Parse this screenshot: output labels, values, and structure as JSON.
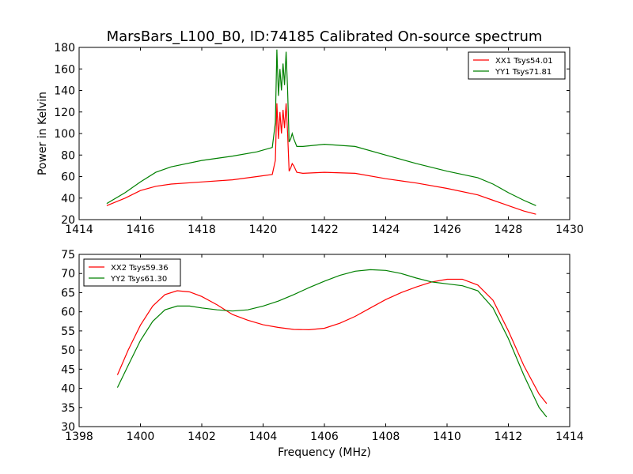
{
  "figure": {
    "title": "MarsBars_L100_B0, ID:74185 Calibrated On-source spectrum",
    "xlabel": "Frequency (MHz)"
  },
  "chart_data": [
    {
      "type": "line",
      "ylabel": "Power in Kelvin",
      "xlim": [
        1414,
        1430
      ],
      "ylim": [
        20,
        180
      ],
      "xticks": [
        "1414",
        "1416",
        "1418",
        "1420",
        "1422",
        "1424",
        "1426",
        "1428",
        "1430"
      ],
      "yticks": [
        "20",
        "40",
        "60",
        "80",
        "100",
        "120",
        "140",
        "160",
        "180"
      ],
      "legend": "top-right",
      "grid": false,
      "series": [
        {
          "name": "XX1 Tsys54.01",
          "color": "#ff0000",
          "x": [
            1414.9,
            1415.5,
            1416.0,
            1416.5,
            1417.0,
            1418.0,
            1419.0,
            1419.8,
            1420.3,
            1420.4,
            1420.45,
            1420.5,
            1420.55,
            1420.6,
            1420.65,
            1420.7,
            1420.75,
            1420.8,
            1420.85,
            1420.9,
            1420.95,
            1421.0,
            1421.1,
            1421.3,
            1422.0,
            1423.0,
            1424.0,
            1425.0,
            1426.0,
            1427.0,
            1427.5,
            1428.0,
            1428.5,
            1428.9
          ],
          "y": [
            33,
            40,
            47,
            51,
            53,
            55,
            57,
            60,
            62,
            75,
            128,
            95,
            120,
            100,
            122,
            105,
            128,
            100,
            65,
            68,
            72,
            70,
            64,
            63,
            64,
            63,
            58,
            54,
            49,
            43,
            38,
            33,
            28,
            25
          ]
        },
        {
          "name": "YY1 Tsys71.81",
          "color": "#008000",
          "x": [
            1414.9,
            1415.5,
            1416.0,
            1416.5,
            1417.0,
            1418.0,
            1419.0,
            1419.8,
            1420.3,
            1420.4,
            1420.45,
            1420.5,
            1420.55,
            1420.6,
            1420.65,
            1420.7,
            1420.75,
            1420.8,
            1420.85,
            1420.9,
            1420.95,
            1421.0,
            1421.1,
            1421.3,
            1422.0,
            1423.0,
            1424.0,
            1425.0,
            1426.0,
            1427.0,
            1427.5,
            1428.0,
            1428.5,
            1428.9
          ],
          "y": [
            35,
            45,
            55,
            64,
            69,
            75,
            79,
            83,
            87,
            110,
            178,
            135,
            160,
            140,
            165,
            145,
            176,
            140,
            92,
            95,
            100,
            95,
            88,
            88,
            90,
            88,
            80,
            72,
            65,
            59,
            53,
            45,
            38,
            33
          ]
        }
      ]
    },
    {
      "type": "line",
      "ylabel": "",
      "xlim": [
        1398,
        1414
      ],
      "ylim": [
        30,
        75
      ],
      "xticks": [
        "1398",
        "1400",
        "1402",
        "1404",
        "1406",
        "1408",
        "1410",
        "1412",
        "1414"
      ],
      "yticks": [
        "30",
        "35",
        "40",
        "45",
        "50",
        "55",
        "60",
        "65",
        "70",
        "75"
      ],
      "legend": "top-left",
      "grid": false,
      "series": [
        {
          "name": "XX2 Tsys59.36",
          "color": "#ff0000",
          "x": [
            1399.25,
            1399.6,
            1400.0,
            1400.4,
            1400.8,
            1401.2,
            1401.6,
            1402.0,
            1402.5,
            1403.0,
            1403.5,
            1404.0,
            1404.5,
            1405.0,
            1405.5,
            1406.0,
            1406.5,
            1407.0,
            1407.5,
            1408.0,
            1408.5,
            1409.0,
            1409.5,
            1410.0,
            1410.5,
            1411.0,
            1411.5,
            1412.0,
            1412.5,
            1413.0,
            1413.25
          ],
          "y": [
            43.5,
            50,
            56.5,
            61.5,
            64.5,
            65.5,
            65.2,
            64,
            61.8,
            59.3,
            57.8,
            56.6,
            55.9,
            55.4,
            55.3,
            55.7,
            57,
            58.8,
            61,
            63.2,
            65,
            66.5,
            67.8,
            68.5,
            68.5,
            67,
            63,
            55,
            46,
            38.5,
            36
          ]
        },
        {
          "name": "YY2 Tsys61.30",
          "color": "#008000",
          "x": [
            1399.25,
            1399.6,
            1400.0,
            1400.4,
            1400.8,
            1401.2,
            1401.6,
            1402.0,
            1402.5,
            1403.0,
            1403.5,
            1404.0,
            1404.5,
            1405.0,
            1405.5,
            1406.0,
            1406.5,
            1407.0,
            1407.5,
            1408.0,
            1408.5,
            1409.0,
            1409.5,
            1410.0,
            1410.5,
            1411.0,
            1411.5,
            1412.0,
            1412.5,
            1413.0,
            1413.25
          ],
          "y": [
            40.2,
            46,
            52.5,
            57.5,
            60.5,
            61.5,
            61.5,
            61,
            60.5,
            60.2,
            60.5,
            61.5,
            62.8,
            64.5,
            66.3,
            68,
            69.5,
            70.6,
            71,
            70.8,
            70,
            68.8,
            67.8,
            67.3,
            66.8,
            65.5,
            61,
            53,
            43.5,
            35,
            32.5
          ]
        }
      ]
    }
  ]
}
